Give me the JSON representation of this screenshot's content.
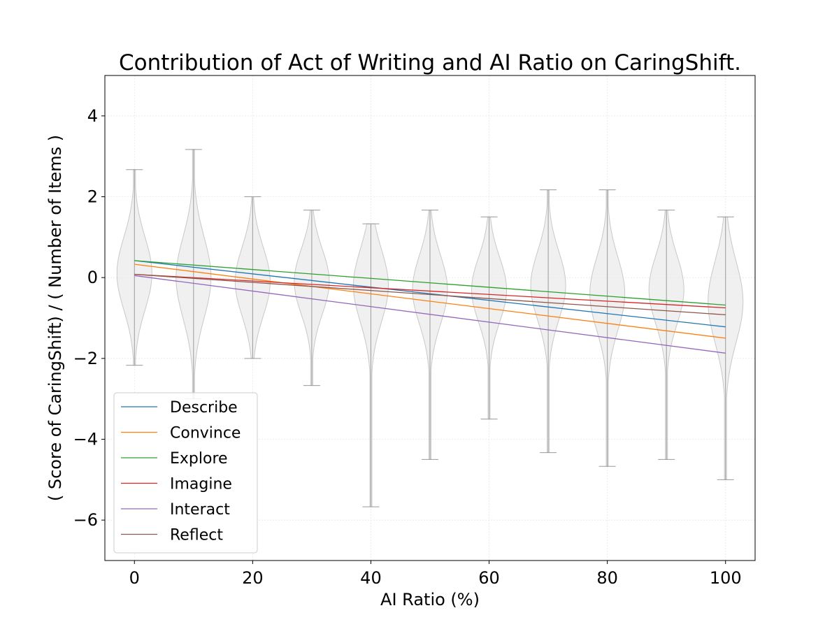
{
  "chart_data": {
    "type": "violin",
    "title": "Contribution of Act of Writing and AI Ratio on CaringShift.",
    "xlabel": "AI Ratio (%)",
    "ylabel": "( Score of CaringShift) / ( Number of Items )",
    "xlim": [
      -5,
      105
    ],
    "ylim": [
      -7,
      5
    ],
    "x_ticks": [
      0,
      20,
      40,
      60,
      80,
      100
    ],
    "y_ticks": [
      -6,
      -4,
      -2,
      0,
      2,
      4
    ],
    "x_tick_labels": [
      "0",
      "20",
      "40",
      "60",
      "80",
      "100"
    ],
    "y_tick_labels": [
      "−6",
      "−4",
      "−2",
      "0",
      "2",
      "4"
    ],
    "grid": true,
    "legend_position": "lower-left",
    "violins": [
      {
        "x": 0,
        "min": -2.17,
        "max": 2.67,
        "center": 0.1,
        "spread": 0.9
      },
      {
        "x": 10,
        "min": -3.0,
        "max": 3.17,
        "center": 0.0,
        "spread": 1.0
      },
      {
        "x": 20,
        "min": -2.0,
        "max": 2.0,
        "center": -0.1,
        "spread": 0.85
      },
      {
        "x": 30,
        "min": -2.67,
        "max": 1.67,
        "center": -0.1,
        "spread": 0.8
      },
      {
        "x": 40,
        "min": -5.67,
        "max": 1.33,
        "center": -0.2,
        "spread": 0.9
      },
      {
        "x": 50,
        "min": -4.5,
        "max": 1.67,
        "center": -0.3,
        "spread": 0.85
      },
      {
        "x": 60,
        "min": -3.5,
        "max": 1.5,
        "center": -0.3,
        "spread": 0.8
      },
      {
        "x": 70,
        "min": -4.33,
        "max": 2.17,
        "center": -0.2,
        "spread": 0.85
      },
      {
        "x": 80,
        "min": -4.67,
        "max": 2.17,
        "center": -0.4,
        "spread": 0.9
      },
      {
        "x": 90,
        "min": -4.5,
        "max": 1.67,
        "center": -0.3,
        "spread": 0.85
      },
      {
        "x": 100,
        "min": -5.0,
        "max": 1.5,
        "center": -0.6,
        "spread": 1.0
      }
    ],
    "series": [
      {
        "name": "Describe",
        "color": "#1f77b4",
        "x": [
          0,
          100
        ],
        "y": [
          0.42,
          -1.22
        ]
      },
      {
        "name": "Convince",
        "color": "#ff7f0e",
        "x": [
          0,
          100
        ],
        "y": [
          0.33,
          -1.5
        ]
      },
      {
        "name": "Explore",
        "color": "#2ca02c",
        "x": [
          0,
          100
        ],
        "y": [
          0.42,
          -0.68
        ]
      },
      {
        "name": "Imagine",
        "color": "#d62728",
        "x": [
          0,
          100
        ],
        "y": [
          0.08,
          -0.75
        ]
      },
      {
        "name": "Interact",
        "color": "#9467bd",
        "x": [
          0,
          100
        ],
        "y": [
          0.05,
          -1.87
        ]
      },
      {
        "name": "Reflect",
        "color": "#8c564b",
        "x": [
          0,
          100
        ],
        "y": [
          0.08,
          -0.92
        ]
      }
    ]
  }
}
